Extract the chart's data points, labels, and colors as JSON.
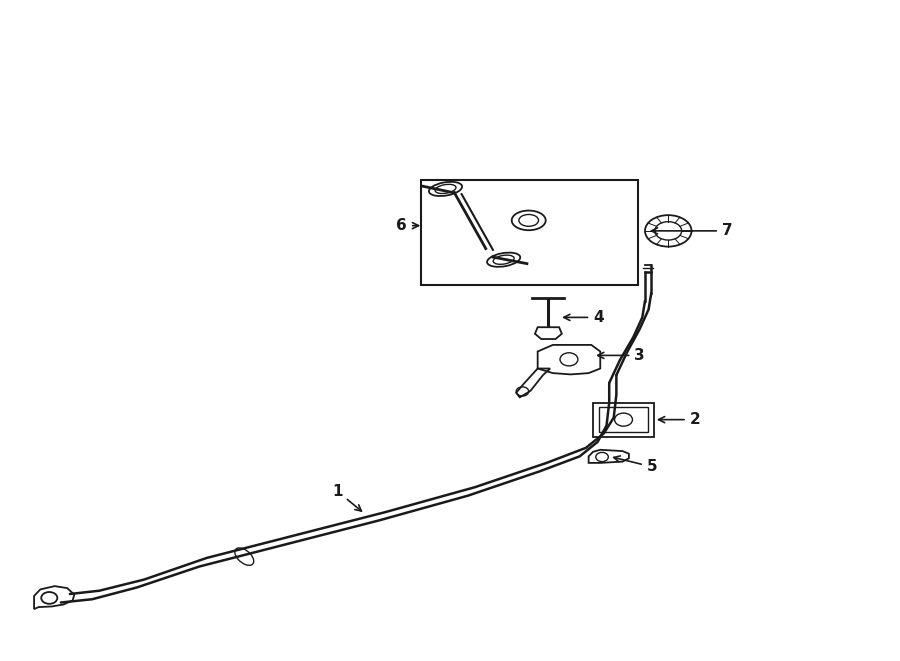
{
  "bg_color": "#ffffff",
  "line_color": "#1a1a1a",
  "fig_width": 9.0,
  "fig_height": 6.61,
  "dpi": 100,
  "bar_outer": {
    "x": [
      0.065,
      0.1,
      0.15,
      0.22,
      0.32,
      0.42,
      0.52,
      0.6,
      0.645,
      0.665,
      0.675,
      0.678,
      0.678
    ],
    "y": [
      0.085,
      0.09,
      0.108,
      0.14,
      0.175,
      0.21,
      0.248,
      0.285,
      0.308,
      0.33,
      0.355,
      0.39,
      0.42
    ]
  },
  "bar_inner": {
    "x": [
      0.075,
      0.108,
      0.158,
      0.228,
      0.328,
      0.428,
      0.528,
      0.608,
      0.652,
      0.672,
      0.683,
      0.686,
      0.686
    ],
    "y": [
      0.098,
      0.103,
      0.12,
      0.153,
      0.188,
      0.223,
      0.261,
      0.298,
      0.321,
      0.343,
      0.367,
      0.402,
      0.432
    ]
  },
  "bar_right_bend_outer": {
    "x": [
      0.678,
      0.69,
      0.705,
      0.715,
      0.718
    ],
    "y": [
      0.42,
      0.455,
      0.49,
      0.52,
      0.545
    ]
  },
  "bar_right_bend_inner": {
    "x": [
      0.686,
      0.698,
      0.712,
      0.722,
      0.725
    ],
    "y": [
      0.432,
      0.467,
      0.502,
      0.532,
      0.557
    ]
  },
  "bar_right_vert_outer": {
    "x": [
      0.718,
      0.718
    ],
    "y": [
      0.545,
      0.59
    ]
  },
  "bar_right_vert_inner": {
    "x": [
      0.725,
      0.725
    ],
    "y": [
      0.557,
      0.6
    ]
  }
}
